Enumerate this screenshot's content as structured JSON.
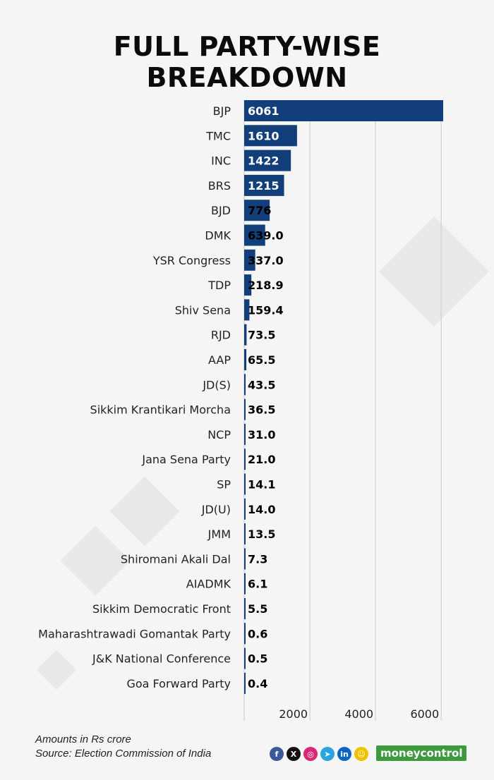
{
  "title": "FULL PARTY-WISE\nBREAKDOWN",
  "notes": {
    "units": "Amounts in Rs crore",
    "source": "Source: Election Commission of India"
  },
  "brand": "moneycontrol",
  "social_icons": [
    {
      "name": "facebook-icon",
      "glyph": "f",
      "color": "#3b5998"
    },
    {
      "name": "x-icon",
      "glyph": "X",
      "color": "#111111"
    },
    {
      "name": "instagram-icon",
      "glyph": "◎",
      "color": "#d62976"
    },
    {
      "name": "telegram-icon",
      "glyph": "➤",
      "color": "#2aa3df"
    },
    {
      "name": "linkedin-icon",
      "glyph": "in",
      "color": "#0a66c2"
    },
    {
      "name": "snapchat-icon",
      "glyph": "☺",
      "color": "#f2c200"
    }
  ],
  "colors": {
    "bar": "#123f7a",
    "value_inside": "#ffffff",
    "value_outside": "#000000",
    "grid": "#c9c9cc"
  },
  "chart_data": {
    "type": "bar",
    "orientation": "horizontal",
    "categories": [
      "BJP",
      "TMC",
      "INC",
      "BRS",
      "BJD",
      "DMK",
      "YSR Congress",
      "TDP",
      "Shiv Sena",
      "RJD",
      "AAP",
      "JD(S)",
      "Sikkim Krantikari Morcha",
      "NCP",
      "Jana Sena Party",
      "SP",
      "JD(U)",
      "JMM",
      "Shiromani Akali Dal",
      "AIADMK",
      "Sikkim Democratic Front",
      "Maharashtrawadi Gomantak Party",
      "J&K National Conference",
      "Goa Forward Party"
    ],
    "values": [
      6061,
      1610,
      1422,
      1215,
      776,
      639.0,
      337.0,
      218.9,
      159.4,
      73.5,
      65.5,
      43.5,
      36.5,
      31.0,
      21.0,
      14.1,
      14.0,
      13.5,
      7.3,
      6.1,
      5.5,
      0.6,
      0.5,
      0.4
    ],
    "value_labels": [
      "6061",
      "1610",
      "1422",
      "1215",
      "776",
      "639.0",
      "337.0",
      "218.9",
      "159.4",
      "73.5",
      "65.5",
      "43.5",
      "36.5",
      "31.0",
      "21.0",
      "14.1",
      "14.0",
      "13.5",
      "7.3",
      "6.1",
      "5.5",
      "0.6",
      "0.5",
      "0.4"
    ],
    "xticks": [
      2000,
      4000,
      6000
    ],
    "xtick_labels": [
      "2000",
      "4000",
      "6000"
    ],
    "xlim": [
      0,
      6061
    ],
    "grid": true
  }
}
